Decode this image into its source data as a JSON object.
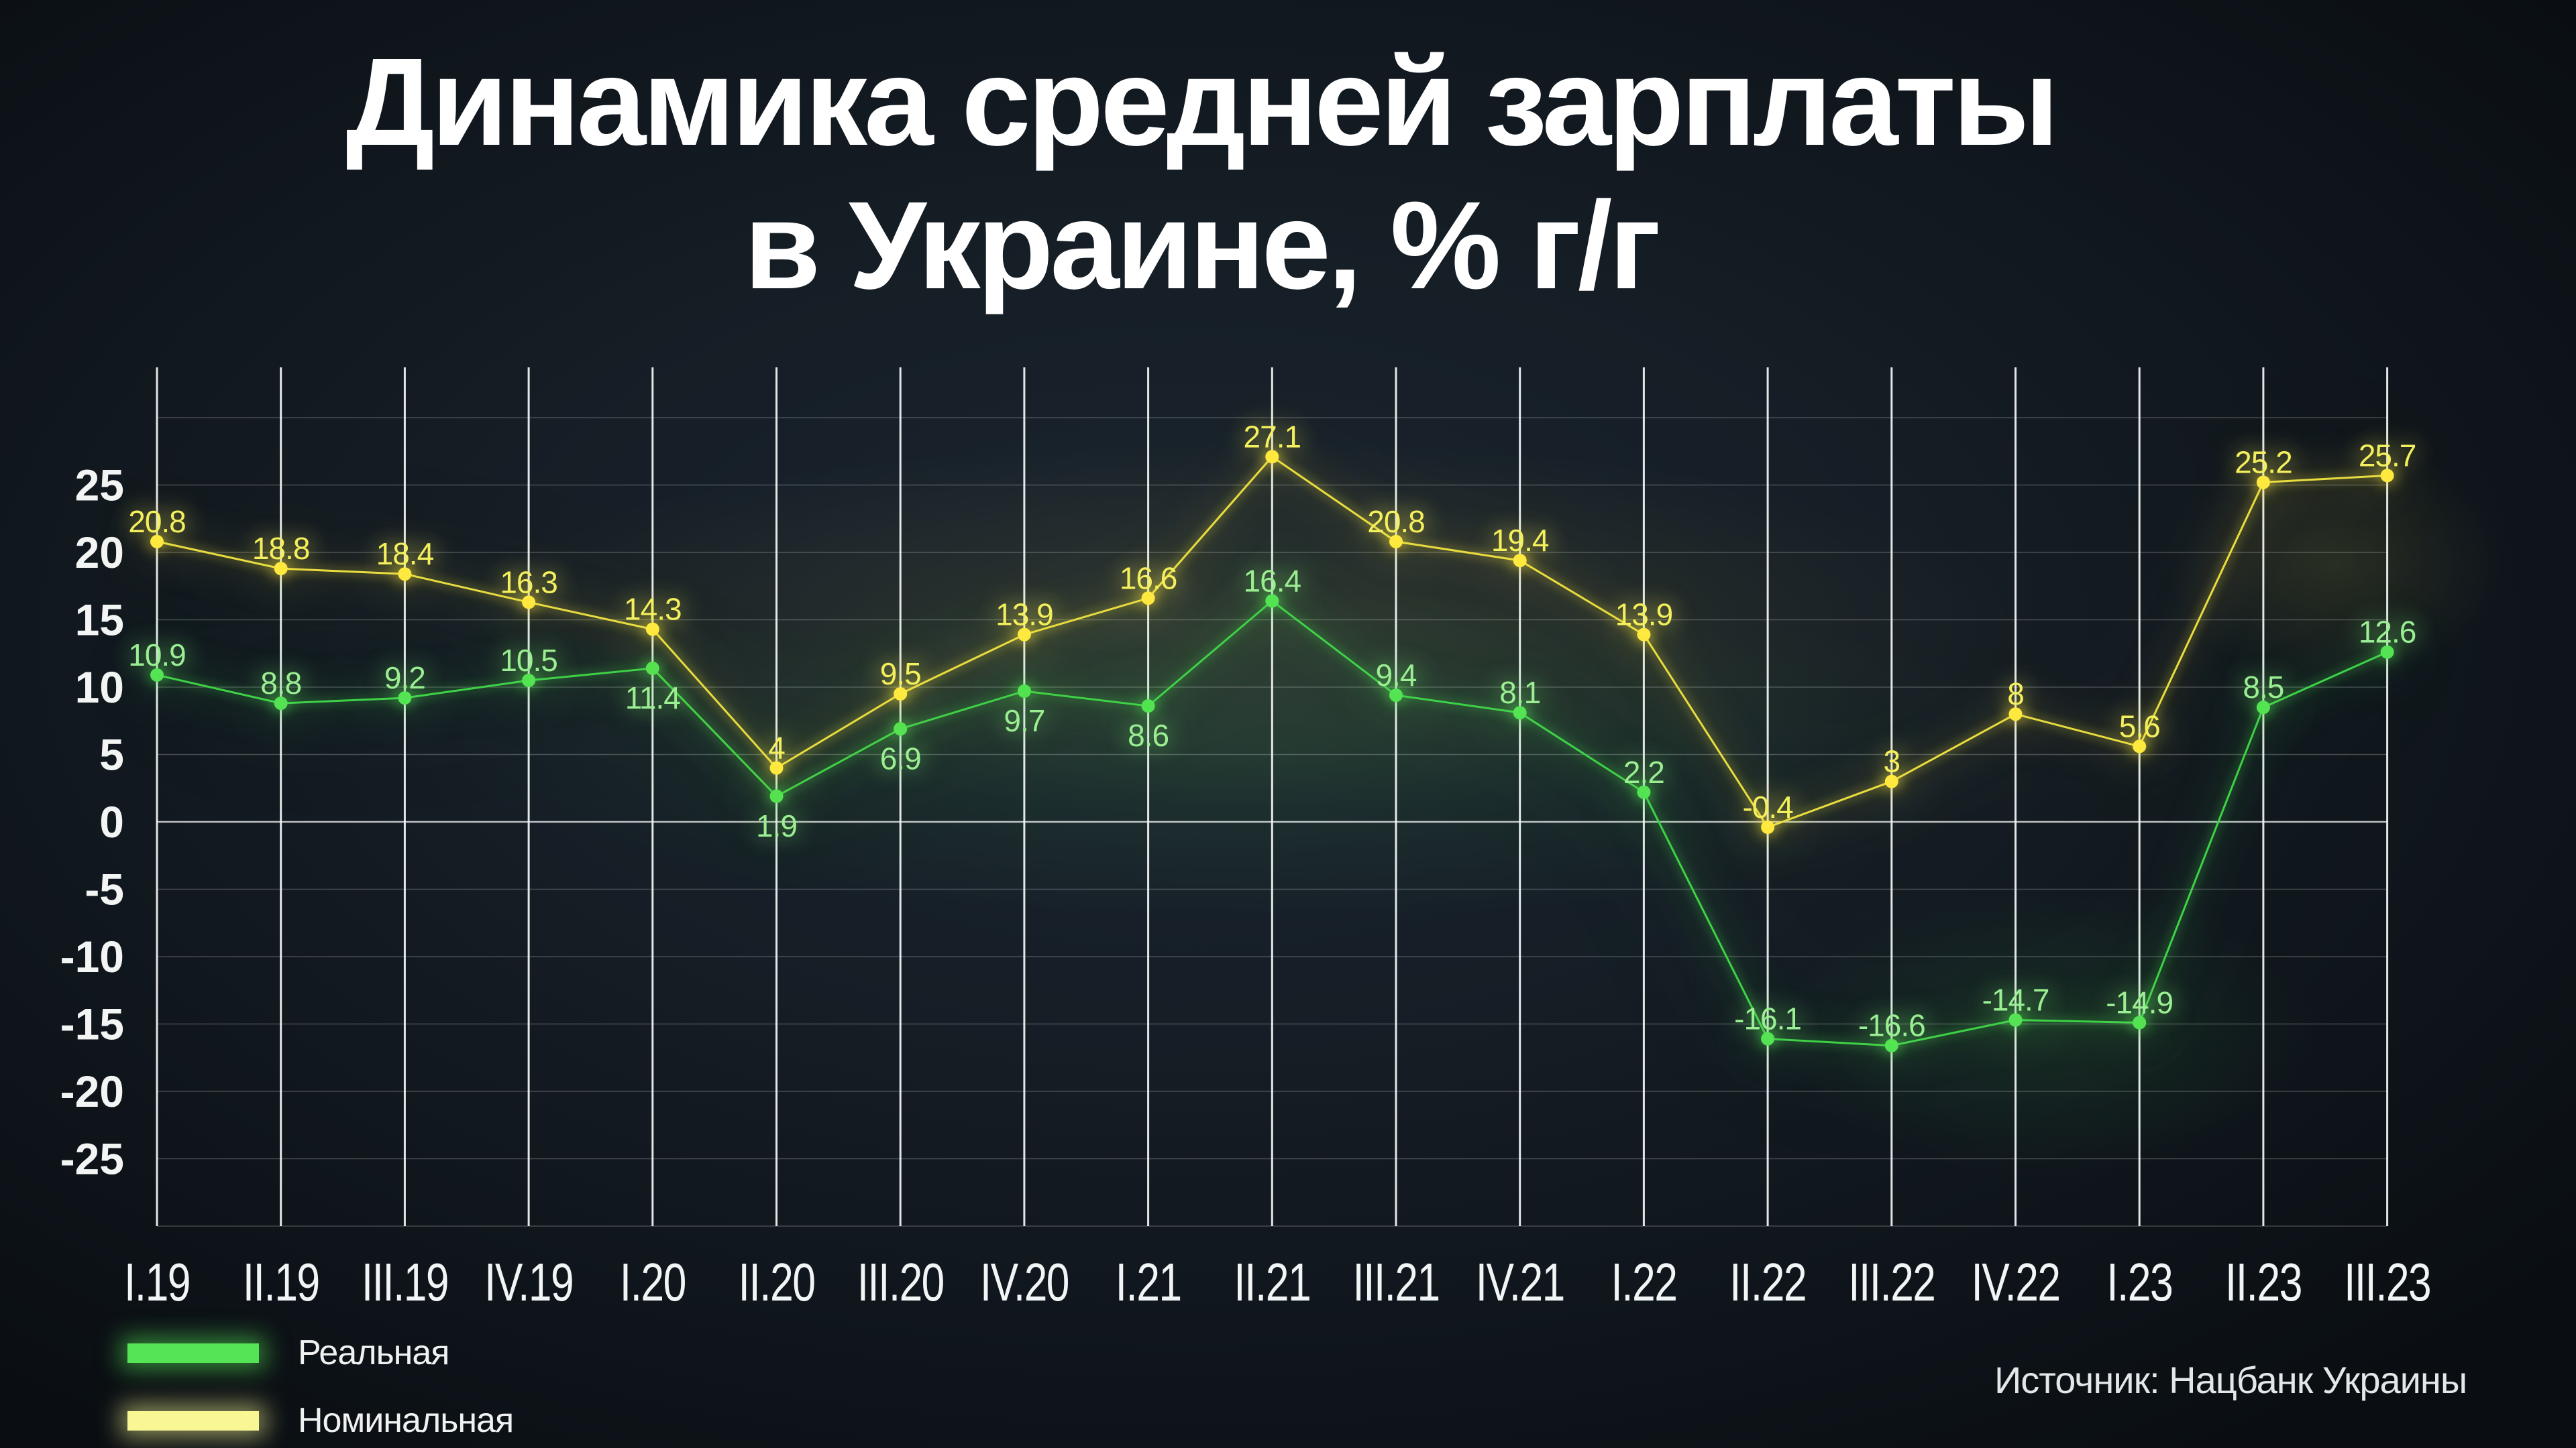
{
  "title": {
    "line1": "Динамика средней зарплаты",
    "line2": "в Украине, % г/г"
  },
  "legend": {
    "items": [
      {
        "label": "Реальная",
        "color": "#55e455",
        "glow": "rgba(85,228,85,0.55)"
      },
      {
        "label": "Номинальная",
        "color": "#f8f794",
        "glow": "rgba(248,247,148,0.55)"
      }
    ]
  },
  "source": {
    "text": "Источник: Нацбанк Украины"
  },
  "chart_data": {
    "type": "line",
    "categories": [
      "I.19",
      "II.19",
      "III.19",
      "IV.19",
      "I.20",
      "II.20",
      "III.20",
      "IV.20",
      "I.21",
      "II.21",
      "III.21",
      "IV.21",
      "I.22",
      "II.22",
      "III.22",
      "IV.22",
      "I.23",
      "II.23",
      "III.23"
    ],
    "series": [
      {
        "name": "Реальная",
        "line_color": "#3fd148",
        "point_color": "#52e352",
        "label_color": "#9bef93",
        "values": [
          10.9,
          8.8,
          9.2,
          10.5,
          11.4,
          1.9,
          6.9,
          9.7,
          8.6,
          16.4,
          9.4,
          8.1,
          2.2,
          -16.1,
          -16.6,
          -14.7,
          -14.9,
          8.5,
          12.6
        ],
        "labels_below_indices": [
          4,
          5,
          6,
          7,
          8
        ]
      },
      {
        "name": "Номинальная",
        "line_color": "#e8dc40",
        "point_color": "#ffe93e",
        "label_color": "#f4ef5c",
        "values": [
          20.8,
          18.8,
          18.4,
          16.3,
          14.3,
          4,
          9.5,
          13.9,
          16.6,
          27.1,
          20.8,
          19.4,
          13.9,
          -0.4,
          3,
          8,
          5.6,
          25.2,
          25.7
        ],
        "labels_below_indices": []
      }
    ],
    "title": "Динамика средней зарплаты в Украине, % г/г",
    "xlabel": "",
    "ylabel": "",
    "ylim": [
      -30,
      30
    ],
    "yticks": [
      25,
      20,
      15,
      10,
      5,
      0,
      -5,
      -10,
      -15,
      -20,
      -25
    ],
    "grid_step": 5,
    "grid": "both",
    "legend_position": "bottom-left",
    "source_position": "bottom-right"
  }
}
